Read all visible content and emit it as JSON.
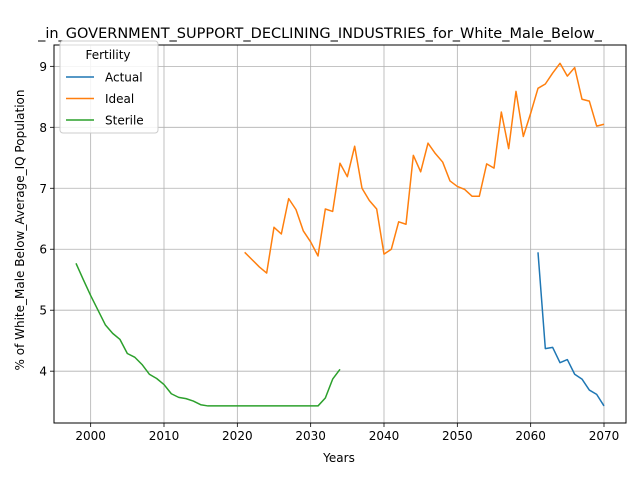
{
  "chart_data": {
    "type": "line",
    "title": "_in_GOVERNMENT_SUPPORT_DECLINING_INDUSTRIES_for_White_Male_Below_",
    "xlabel": "Years",
    "ylabel": "% of White_Male Below_Average_IQ Population",
    "xlim": [
      1995,
      2073
    ],
    "ylim": [
      3.15,
      9.35
    ],
    "x_ticks": [
      2000,
      2010,
      2020,
      2030,
      2040,
      2050,
      2060,
      2070
    ],
    "y_ticks": [
      4,
      5,
      6,
      7,
      8,
      9
    ],
    "grid": true,
    "legend_title": "Fertility",
    "legend_position": "top-left",
    "series": [
      {
        "name": "Actual",
        "color": "#1f77b4",
        "x": [
          2061,
          2062,
          2063,
          2064,
          2065,
          2066,
          2067,
          2068,
          2069,
          2070
        ],
        "y": [
          5.95,
          4.37,
          4.39,
          4.14,
          4.19,
          3.95,
          3.87,
          3.69,
          3.62,
          3.43
        ]
      },
      {
        "name": "Ideal",
        "color": "#ff7f0e",
        "x": [
          2021,
          2022,
          2023,
          2024,
          2025,
          2026,
          2027,
          2028,
          2029,
          2030,
          2031,
          2032,
          2033,
          2034,
          2035,
          2036,
          2037,
          2038,
          2039,
          2040,
          2041,
          2042,
          2043,
          2044,
          2045,
          2046,
          2047,
          2048,
          2049,
          2050,
          2051,
          2052,
          2053,
          2054,
          2055,
          2056,
          2057,
          2058,
          2059,
          2060,
          2061,
          2062,
          2063,
          2064,
          2065,
          2066,
          2067,
          2068,
          2069,
          2070
        ],
        "y": [
          5.95,
          5.83,
          5.71,
          5.61,
          6.36,
          6.25,
          6.83,
          6.65,
          6.3,
          6.12,
          5.89,
          6.66,
          6.62,
          7.41,
          7.19,
          7.69,
          7.0,
          6.8,
          6.66,
          5.92,
          6.0,
          6.45,
          6.41,
          7.54,
          7.27,
          7.74,
          7.57,
          7.43,
          7.12,
          7.03,
          6.98,
          6.87,
          6.87,
          7.4,
          7.33,
          8.25,
          7.65,
          8.59,
          7.85,
          8.23,
          8.64,
          8.71,
          8.89,
          9.05,
          8.84,
          8.98,
          8.46,
          8.43,
          8.02,
          8.05
        ]
      },
      {
        "name": "Sterile",
        "color": "#2ca02c",
        "x": [
          1998,
          1999,
          2000,
          2001,
          2002,
          2003,
          2004,
          2005,
          2006,
          2007,
          2008,
          2009,
          2010,
          2011,
          2012,
          2013,
          2014,
          2015,
          2016,
          2017,
          2018,
          2019,
          2020,
          2021,
          2022,
          2023,
          2024,
          2025,
          2026,
          2027,
          2028,
          2029,
          2030,
          2031,
          2032,
          2033,
          2034
        ],
        "y": [
          5.77,
          5.5,
          5.24,
          5.0,
          4.76,
          4.62,
          4.52,
          4.29,
          4.23,
          4.11,
          3.95,
          3.88,
          3.78,
          3.63,
          3.57,
          3.55,
          3.51,
          3.45,
          3.43,
          3.43,
          3.43,
          3.43,
          3.43,
          3.43,
          3.43,
          3.43,
          3.43,
          3.43,
          3.43,
          3.43,
          3.43,
          3.43,
          3.43,
          3.43,
          3.56,
          3.87,
          4.03
        ]
      }
    ]
  }
}
